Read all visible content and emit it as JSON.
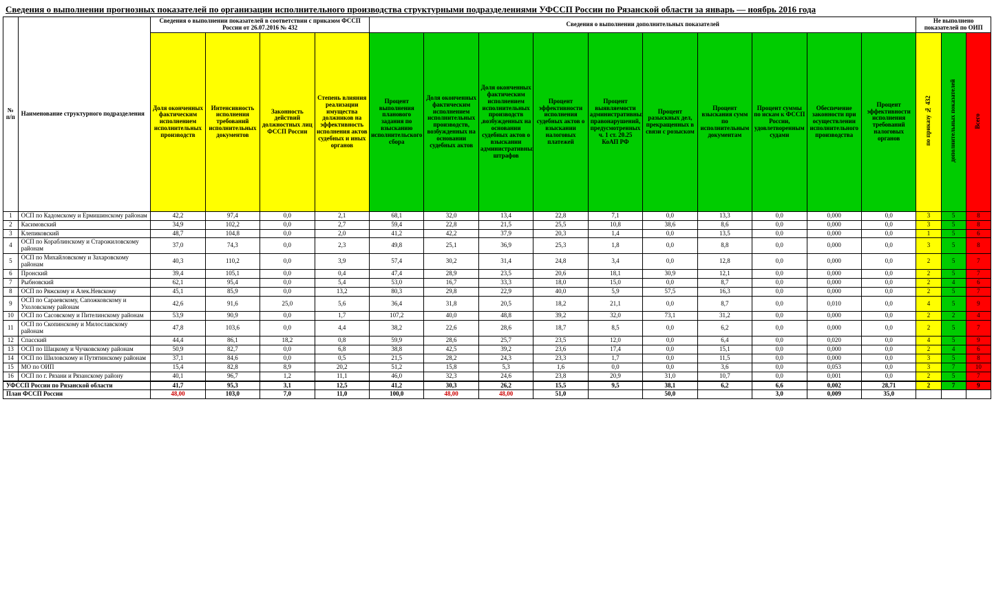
{
  "title": "Сведения о выполнении прогнозных показателей по организации исполнительного производства структурными подразделениями УФССП России по Рязанской области за январь — ноябрь  2016 года",
  "headers": {
    "num": "№ п/п",
    "name": "Наименование структурного подразделения",
    "group1": "Сведения о выполнении показателей в соответствии с приказом ФССП России от 26.07.2016 № 432",
    "group2": "Сведения о выполнении дополнительных показателей",
    "group3": "Не выполнено показателей по ОИП",
    "c1": "Доля оконченных фактическим исполнением исполнительных производств",
    "c2": "Интенсивность исполнения требований исполнительных документов",
    "c3": "Законность действий должностных лиц ФССП России",
    "c4": "Степень влияния реализации имущества должников на эффективность исполнения актов судебных и иных органов",
    "c5": "Процент выполнения планового задания по взысканию исполнительского сбора",
    "c6": "Доля оконченных фактическим исполнением исполнительных производств, возбужденных на основании судебных актов",
    "c7": "Доля оконченных фактическим исполнением исполнительных производств ,возбужденных на основании судебных актов о взыскании административных штрафов",
    "c8": "Процент эффективности исполнения судебных актов о взыскании налоговых платежей",
    "c9": "Процент выявляемости административных правонарушений, предусмотренных ч. 1 ст. 20.25 КоАП РФ",
    "c10": "Процент разыскных дел, прекращенных в связи с розыском",
    "c11": "Процент взыскания сумм по исполнительным документам",
    "c12": "Процент суммы по искам к ФССП России, удовлетворенным судами",
    "c13": "Обеспечение законности при осуществлении исполнительного производства",
    "c14": "Процент эффективности исполнения требований налоговых органов",
    "s1": "по приказу № 432",
    "s2": "дополнительных показателей",
    "s3": "Всего"
  },
  "rows": [
    {
      "n": "1",
      "name": "ОСП по Кадомскому и Ермишинскому районам",
      "d": [
        "42,2",
        "97,4",
        "0,0",
        "2,1",
        "68,1",
        "32,0",
        "13,4",
        "22,8",
        "7,1",
        "0,0",
        "13,3",
        "0,0",
        "0,000",
        "0,0"
      ],
      "s": [
        "3",
        "5",
        "8"
      ]
    },
    {
      "n": "2",
      "name": "Касимовский",
      "d": [
        "34,9",
        "102,2",
        "0,0",
        "2,7",
        "59,4",
        "22,8",
        "21,5",
        "25,5",
        "10,8",
        "38,6",
        "8,6",
        "0,0",
        "0,000",
        "0,0"
      ],
      "s": [
        "3",
        "5",
        "8"
      ]
    },
    {
      "n": "3",
      "name": "Клепиковский",
      "d": [
        "48,7",
        "104,8",
        "0,0",
        "2,0",
        "41,2",
        "42,2",
        "37,9",
        "20,3",
        "1,4",
        "0,0",
        "13,5",
        "0,0",
        "0,000",
        "0,0"
      ],
      "s": [
        "1",
        "5",
        "6"
      ]
    },
    {
      "n": "4",
      "name": "ОСП по Кораблинскому и Старожиловскому районам",
      "d": [
        "37,0",
        "74,3",
        "0,0",
        "2,3",
        "49,8",
        "25,1",
        "36,9",
        "25,3",
        "1,8",
        "0,0",
        "8,8",
        "0,0",
        "0,000",
        "0,0"
      ],
      "s": [
        "3",
        "5",
        "8"
      ]
    },
    {
      "n": "5",
      "name": "ОСП по Михайловскому и Захаровскому районам",
      "d": [
        "40,3",
        "110,2",
        "0,0",
        "3,9",
        "57,4",
        "30,2",
        "31,4",
        "24,8",
        "3,4",
        "0,0",
        "12,8",
        "0,0",
        "0,000",
        "0,0"
      ],
      "s": [
        "2",
        "5",
        "7"
      ]
    },
    {
      "n": "6",
      "name": "Пронский",
      "d": [
        "39,4",
        "105,1",
        "0,0",
        "0,4",
        "47,4",
        "28,9",
        "23,5",
        "20,6",
        "18,1",
        "30,9",
        "12,1",
        "0,0",
        "0,000",
        "0,0"
      ],
      "s": [
        "2",
        "5",
        "7"
      ]
    },
    {
      "n": "7",
      "name": "Рыбновский",
      "d": [
        "62,1",
        "95,4",
        "0,0",
        "5,4",
        "53,0",
        "16,7",
        "33,3",
        "18,0",
        "15,0",
        "0,0",
        "8,7",
        "0,0",
        "0,000",
        "0,0"
      ],
      "s": [
        "2",
        "4",
        "6"
      ]
    },
    {
      "n": "8",
      "name": "ОСП по Ряжскому и Алек.Невскому",
      "d": [
        "45,1",
        "85,9",
        "0,0",
        "13,2",
        "80,3",
        "29,8",
        "22,9",
        "40,0",
        "5,9",
        "57,5",
        "16,3",
        "0,0",
        "0,000",
        "0,0"
      ],
      "s": [
        "2",
        "5",
        "7"
      ]
    },
    {
      "n": "9",
      "name": "ОСП по Сараевскому, Сапожковскому и Ухоловскому районам",
      "d": [
        "42,6",
        "91,6",
        "25,0",
        "5,6",
        "36,4",
        "31,8",
        "20,5",
        "18,2",
        "21,1",
        "0,0",
        "8,7",
        "0,0",
        "0,010",
        "0,0"
      ],
      "s": [
        "4",
        "5",
        "9"
      ]
    },
    {
      "n": "10",
      "name": "ОСП по Сасовскому и Пителинскому районам",
      "d": [
        "53,9",
        "90,9",
        "0,0",
        "1,7",
        "107,2",
        "40,0",
        "48,8",
        "39,2",
        "32,0",
        "73,1",
        "31,2",
        "0,0",
        "0,000",
        "0,0"
      ],
      "s": [
        "2",
        "2",
        "4"
      ]
    },
    {
      "n": "11",
      "name": "ОСП по Скопинскому и Милославскому районам",
      "d": [
        "47,8",
        "103,6",
        "0,0",
        "4,4",
        "38,2",
        "22,6",
        "28,6",
        "18,7",
        "8,5",
        "0,0",
        "6,2",
        "0,0",
        "0,000",
        "0,0"
      ],
      "s": [
        "2",
        "5",
        "7"
      ]
    },
    {
      "n": "12",
      "name": "Спасский",
      "d": [
        "44,4",
        "86,1",
        "18,2",
        "0,8",
        "59,9",
        "28,6",
        "25,7",
        "23,5",
        "12,0",
        "0,0",
        "6,4",
        "0,0",
        "0,020",
        "0,0"
      ],
      "s": [
        "4",
        "5",
        "9"
      ]
    },
    {
      "n": "13",
      "name": "ОСП по Шацкому и Чучковскому районам",
      "d": [
        "50,9",
        "82,7",
        "0,0",
        "6,8",
        "38,8",
        "42,5",
        "39,2",
        "23,6",
        "17,4",
        "0,0",
        "15,1",
        "0,0",
        "0,000",
        "0,0"
      ],
      "s": [
        "2",
        "4",
        "6"
      ]
    },
    {
      "n": "14",
      "name": "ОСП по Шиловскому и Путятинскому районам",
      "d": [
        "37,1",
        "84,6",
        "0,0",
        "0,5",
        "21,5",
        "28,2",
        "24,3",
        "23,3",
        "1,7",
        "0,0",
        "11,5",
        "0,0",
        "0,000",
        "0,0"
      ],
      "s": [
        "3",
        "5",
        "8"
      ]
    },
    {
      "n": "15",
      "name": "МО по ОИП",
      "d": [
        "15,4",
        "82,8",
        "8,9",
        "20,2",
        "51,2",
        "15,8",
        "5,3",
        "1,6",
        "0,0",
        "0,0",
        "3,6",
        "0,0",
        "0,053",
        "0,0"
      ],
      "s": [
        "3",
        "7",
        "10"
      ]
    },
    {
      "n": "16",
      "name": "ОСП по г. Рязани и Рязанскому району",
      "d": [
        "40,1",
        "96,7",
        "1,2",
        "11,1",
        "46,0",
        "32,3",
        "24,6",
        "23,8",
        "20,9",
        "31,0",
        "10,7",
        "0,0",
        "0,001",
        "0,0"
      ],
      "s": [
        "2",
        "5",
        "7"
      ]
    }
  ],
  "total_label": "УФССП России по Рязанской области",
  "total": {
    "d": [
      "41,7",
      "95,3",
      "3,1",
      "12,5",
      "41,2",
      "30,3",
      "26,2",
      "15,5",
      "9,5",
      "38,1",
      "6,2",
      "6,6",
      "0,002",
      "28,71"
    ],
    "s": [
      "2",
      "7",
      "9"
    ]
  },
  "plan_label": "План ФССП России",
  "plan": [
    "48,00",
    "103,0",
    "7,0",
    "11,0",
    "100,0",
    "48,00",
    "48,00",
    "51,0",
    "",
    "50,0",
    "",
    "3,0",
    "0,009",
    "35,0"
  ],
  "plan_red_idx": [
    0,
    5,
    6
  ],
  "colors": {
    "yellow": "#ffff00",
    "green": "#00cc00",
    "red": "#ff0000"
  }
}
